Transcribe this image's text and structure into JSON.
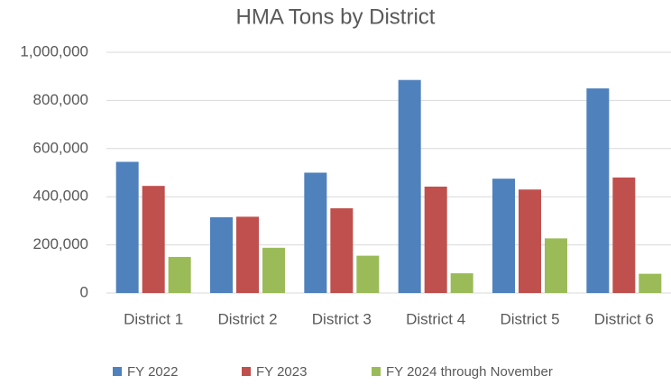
{
  "chart_data": {
    "type": "bar",
    "title": "HMA Tons by District",
    "categories": [
      "District 1",
      "District 2",
      "District 3",
      "District 4",
      "District 5",
      "District 6"
    ],
    "series": [
      {
        "name": "FY 2022",
        "color": "#4f81bd",
        "values": [
          545000,
          315000,
          500000,
          885000,
          475000,
          850000
        ]
      },
      {
        "name": "FY 2023",
        "color": "#c0504d",
        "values": [
          445000,
          317000,
          352000,
          442000,
          430000,
          480000
        ]
      },
      {
        "name": "FY 2024 through November",
        "color": "#9bbb59",
        "values": [
          150000,
          188000,
          155000,
          82000,
          227000,
          80000
        ]
      }
    ],
    "ylim": [
      0,
      1000000
    ],
    "yticks": [
      0,
      {
        "value": 200000,
        "label": "200,000"
      },
      {
        "value": 400000,
        "label": "400,000"
      },
      {
        "value": 600000,
        "label": "600,000"
      },
      {
        "value": 800000,
        "label": "800,000"
      },
      {
        "value": 1000000,
        "label": "1,000,000"
      }
    ],
    "grid": true,
    "legend": "bottom"
  }
}
